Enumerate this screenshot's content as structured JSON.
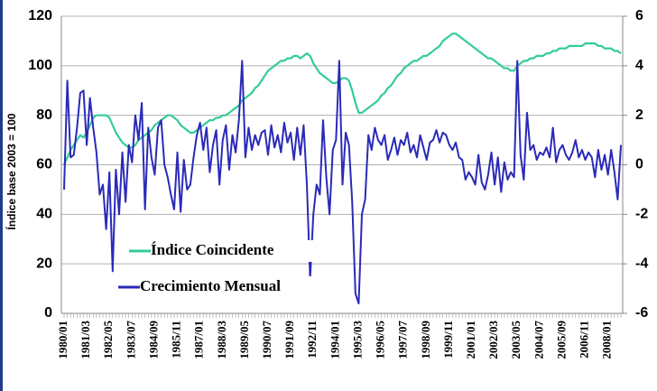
{
  "chart_data": {
    "type": "line",
    "y_label": "Índice base 2003 = 100",
    "categories": [
      "1980/01",
      null,
      null,
      null,
      null,
      null,
      null,
      "1981/03",
      null,
      null,
      null,
      null,
      null,
      null,
      "1982/05",
      null,
      null,
      null,
      null,
      null,
      null,
      "1983/07",
      null,
      null,
      null,
      null,
      null,
      null,
      "1984/09",
      null,
      null,
      null,
      null,
      null,
      null,
      "1985/11",
      null,
      null,
      null,
      null,
      null,
      null,
      "1987/01",
      null,
      null,
      null,
      null,
      null,
      null,
      "1988/03",
      null,
      null,
      null,
      null,
      null,
      null,
      "1989/05",
      null,
      null,
      null,
      null,
      null,
      null,
      "1990/07",
      null,
      null,
      null,
      null,
      null,
      null,
      "1991/09",
      null,
      null,
      null,
      null,
      null,
      null,
      "1992/11",
      null,
      null,
      null,
      null,
      null,
      null,
      "1994/01",
      null,
      null,
      null,
      null,
      null,
      null,
      "1995/03",
      null,
      null,
      null,
      null,
      null,
      null,
      "1996/05",
      null,
      null,
      null,
      null,
      null,
      null,
      "1997/07",
      null,
      null,
      null,
      null,
      null,
      null,
      "1998/09",
      null,
      null,
      null,
      null,
      null,
      null,
      "1999/11",
      null,
      null,
      null,
      null,
      null,
      null,
      "2001/01",
      null,
      null,
      null,
      null,
      null,
      null,
      "2002/03",
      null,
      null,
      null,
      null,
      null,
      null,
      "2003/05",
      null,
      null,
      null,
      null,
      null,
      null,
      "2004/07",
      null,
      null,
      null,
      null,
      null,
      null,
      "2005/09",
      null,
      null,
      null,
      null,
      null,
      null,
      "2006/11",
      null,
      null,
      null,
      null,
      null,
      null,
      "2008/01",
      null,
      null,
      null,
      null
    ],
    "series": [
      {
        "name": "Índice Coincidente",
        "color": "#33cc99",
        "axis": "y",
        "values": [
          60,
          63,
          66,
          68,
          70,
          72,
          71,
          73,
          76,
          79,
          80,
          80,
          80,
          80,
          79,
          76,
          73,
          71,
          69,
          68,
          67,
          67,
          68,
          70,
          71,
          72,
          73,
          74,
          76,
          77,
          78,
          79,
          80,
          80,
          79,
          78,
          76,
          75,
          74,
          73,
          73,
          74,
          75,
          76,
          77,
          78,
          78,
          79,
          79,
          80,
          80,
          81,
          82,
          83,
          84,
          86,
          87,
          88,
          89,
          91,
          92,
          94,
          96,
          98,
          99,
          100,
          101,
          102,
          102,
          103,
          103,
          104,
          104,
          103,
          104,
          105,
          104,
          101,
          99,
          97,
          96,
          95,
          94,
          93,
          93,
          94,
          95,
          95,
          94,
          90,
          85,
          81,
          81,
          82,
          83,
          84,
          85,
          86,
          88,
          89,
          91,
          92,
          94,
          96,
          97,
          99,
          100,
          101,
          102,
          102,
          103,
          104,
          104,
          105,
          106,
          107,
          108,
          110,
          111,
          112,
          113,
          113,
          112,
          111,
          110,
          109,
          108,
          107,
          106,
          105,
          104,
          103,
          103,
          102,
          101,
          100,
          99,
          99,
          98,
          98,
          100,
          101,
          102,
          102,
          103,
          103,
          104,
          104,
          104,
          105,
          105,
          106,
          106,
          107,
          107,
          107,
          108,
          108,
          108,
          108,
          108,
          109,
          109,
          109,
          109,
          108,
          108,
          107,
          107,
          107,
          106,
          106,
          105
        ]
      },
      {
        "name": "Crecimiento Mensual",
        "color": "#2a2ab8",
        "axis": "y2",
        "values": [
          -1.0,
          3.4,
          0.3,
          0.4,
          1.5,
          2.9,
          3.0,
          0.8,
          2.7,
          1.5,
          0.5,
          -1.2,
          -0.8,
          -2.6,
          -0.3,
          -4.3,
          -0.2,
          -2.0,
          0.5,
          -1.5,
          0.8,
          0.1,
          2.0,
          1.0,
          2.5,
          -1.8,
          1.5,
          0.3,
          -0.4,
          1.5,
          1.8,
          0.0,
          -0.5,
          -1.2,
          -1.8,
          0.5,
          -1.9,
          0.2,
          -1.0,
          -0.8,
          0.3,
          1.2,
          1.7,
          0.6,
          1.5,
          -0.3,
          0.8,
          1.4,
          -0.8,
          1.0,
          1.6,
          -0.2,
          1.2,
          0.5,
          1.8,
          4.2,
          0.3,
          1.5,
          0.6,
          1.2,
          0.8,
          1.3,
          1.4,
          0.4,
          1.6,
          0.7,
          1.2,
          0.5,
          1.7,
          0.9,
          1.3,
          0.2,
          1.5,
          0.4,
          1.6,
          -0.8,
          -4.6,
          -2.0,
          -0.8,
          -1.2,
          1.8,
          -0.5,
          -2.0,
          0.6,
          1.0,
          4.2,
          -0.8,
          1.3,
          0.8,
          -1.5,
          -5.2,
          -5.6,
          -2.0,
          -1.4,
          1.2,
          0.6,
          1.5,
          1.0,
          0.8,
          1.2,
          0.2,
          0.6,
          1.1,
          0.4,
          1.0,
          0.8,
          1.3,
          0.5,
          0.8,
          0.3,
          1.2,
          0.7,
          0.2,
          0.9,
          1.0,
          1.4,
          0.9,
          1.3,
          1.2,
          0.8,
          0.6,
          0.9,
          0.3,
          0.2,
          -0.6,
          -0.3,
          -0.5,
          -0.8,
          0.4,
          -0.7,
          -1.0,
          -0.4,
          0.5,
          -0.8,
          0.3,
          -1.1,
          0.1,
          -0.6,
          -0.3,
          -0.5,
          4.2,
          0.4,
          -0.6,
          2.1,
          0.6,
          0.8,
          0.2,
          0.5,
          0.4,
          0.7,
          0.3,
          1.5,
          0.1,
          0.6,
          0.8,
          0.4,
          0.2,
          0.5,
          1.0,
          0.3,
          0.6,
          0.2,
          0.5,
          0.3,
          -0.5,
          0.6,
          -0.2,
          0.4,
          -0.4,
          0.6,
          -0.3,
          -1.4,
          0.8
        ]
      }
    ],
    "ylim": [
      0,
      120
    ],
    "yticks": [
      0,
      20,
      40,
      60,
      80,
      100,
      120
    ],
    "y2lim": [
      -6,
      6
    ],
    "y2ticks": [
      -6,
      -4,
      -2,
      0,
      2,
      4,
      6
    ],
    "grid": true
  }
}
